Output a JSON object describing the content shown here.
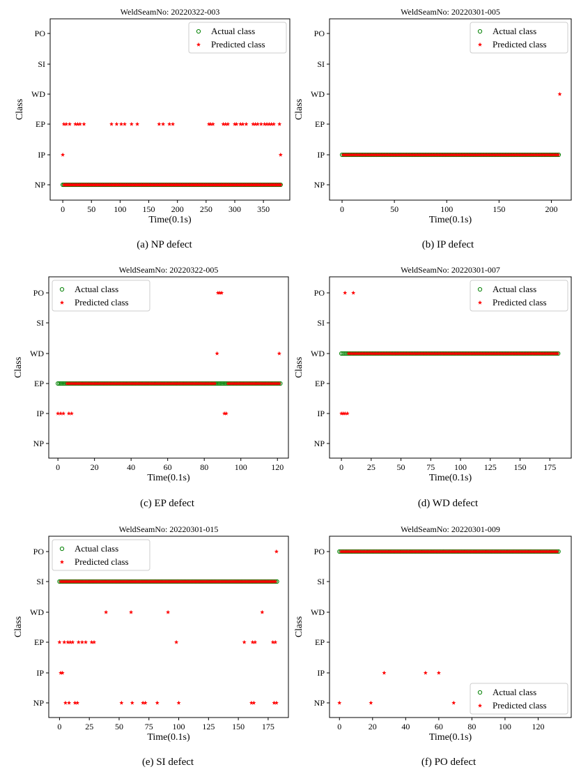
{
  "chart_data": [
    {
      "type": "scatter",
      "title": "WeldSeamNo: 20220322-003",
      "caption": "(a)  NP defect",
      "xlabel": "Time(0.1s)",
      "ylabel": "Class",
      "categories": [
        "NP",
        "IP",
        "EP",
        "WD",
        "SI",
        "PO"
      ],
      "xlim": [
        -22,
        396
      ],
      "xticks": [
        0,
        50,
        100,
        150,
        200,
        250,
        300,
        350
      ],
      "legend": "top-right",
      "legend_labels": [
        "Actual class",
        "Predicted class"
      ],
      "series": [
        {
          "name": "Actual class",
          "marker": "circle",
          "color": "#008000",
          "segments": [
            {
              "x": [
                0,
                380
              ],
              "y": "NP",
              "step": 2
            }
          ]
        },
        {
          "name": "Predicted class",
          "marker": "star",
          "color": "#ff0000",
          "segments": [
            {
              "x": [
                2,
                380
              ],
              "y": "NP",
              "step": 2
            }
          ],
          "points": [
            {
              "x": 0,
              "y": "IP"
            },
            {
              "x": 380,
              "y": "IP"
            },
            {
              "x": 2,
              "y": "EP"
            },
            {
              "x": 6,
              "y": "EP"
            },
            {
              "x": 12,
              "y": "EP"
            },
            {
              "x": 22,
              "y": "EP"
            },
            {
              "x": 26,
              "y": "EP"
            },
            {
              "x": 30,
              "y": "EP"
            },
            {
              "x": 37,
              "y": "EP"
            },
            {
              "x": 85,
              "y": "EP"
            },
            {
              "x": 94,
              "y": "EP"
            },
            {
              "x": 102,
              "y": "EP"
            },
            {
              "x": 108,
              "y": "EP"
            },
            {
              "x": 120,
              "y": "EP"
            },
            {
              "x": 130,
              "y": "EP"
            },
            {
              "x": 168,
              "y": "EP"
            },
            {
              "x": 175,
              "y": "EP"
            },
            {
              "x": 186,
              "y": "EP"
            },
            {
              "x": 192,
              "y": "EP"
            },
            {
              "x": 255,
              "y": "EP"
            },
            {
              "x": 258,
              "y": "EP"
            },
            {
              "x": 262,
              "y": "EP"
            },
            {
              "x": 280,
              "y": "EP"
            },
            {
              "x": 284,
              "y": "EP"
            },
            {
              "x": 288,
              "y": "EP"
            },
            {
              "x": 300,
              "y": "EP"
            },
            {
              "x": 303,
              "y": "EP"
            },
            {
              "x": 310,
              "y": "EP"
            },
            {
              "x": 314,
              "y": "EP"
            },
            {
              "x": 320,
              "y": "EP"
            },
            {
              "x": 332,
              "y": "EP"
            },
            {
              "x": 336,
              "y": "EP"
            },
            {
              "x": 340,
              "y": "EP"
            },
            {
              "x": 346,
              "y": "EP"
            },
            {
              "x": 352,
              "y": "EP"
            },
            {
              "x": 356,
              "y": "EP"
            },
            {
              "x": 360,
              "y": "EP"
            },
            {
              "x": 364,
              "y": "EP"
            },
            {
              "x": 368,
              "y": "EP"
            },
            {
              "x": 378,
              "y": "EP"
            }
          ]
        }
      ]
    },
    {
      "type": "scatter",
      "title": "WeldSeamNo: 20220301-005",
      "caption": "(b) IP defect",
      "xlabel": "Time(0.1s)",
      "ylabel": "Class",
      "categories": [
        "NP",
        "IP",
        "EP",
        "WD",
        "SI",
        "PO"
      ],
      "xlim": [
        -12,
        219
      ],
      "xticks": [
        0,
        50,
        100,
        150,
        200
      ],
      "legend": "top-right",
      "legend_labels": [
        "Actual class",
        "Predicted class"
      ],
      "series": [
        {
          "name": "Actual class",
          "marker": "circle",
          "color": "#008000",
          "segments": [
            {
              "x": [
                0,
                208
              ],
              "y": "IP",
              "step": 1.5
            }
          ]
        },
        {
          "name": "Predicted class",
          "marker": "star",
          "color": "#ff0000",
          "segments": [
            {
              "x": [
                1,
                207
              ],
              "y": "IP",
              "step": 1.5
            }
          ],
          "points": [
            {
              "x": 208,
              "y": "WD"
            }
          ]
        }
      ]
    },
    {
      "type": "scatter",
      "title": "WeldSeamNo: 20220322-005",
      "caption": "(c) EP defect",
      "xlabel": "Time(0.1s)",
      "ylabel": "Class",
      "categories": [
        "NP",
        "IP",
        "EP",
        "WD",
        "SI",
        "PO"
      ],
      "xlim": [
        -5,
        126
      ],
      "xticks": [
        0,
        20,
        40,
        60,
        80,
        100,
        120
      ],
      "legend": "top-left",
      "legend_labels": [
        "Actual class",
        "Predicted class"
      ],
      "series": [
        {
          "name": "Actual class",
          "marker": "circle",
          "color": "#008000",
          "segments": [
            {
              "x": [
                0,
                122
              ],
              "y": "EP",
              "step": 0.8
            }
          ]
        },
        {
          "name": "Predicted class",
          "marker": "star",
          "color": "#ff0000",
          "segments": [
            {
              "x": [
                5,
                86
              ],
              "y": "EP",
              "step": 0.8
            },
            {
              "x": [
                93,
                121
              ],
              "y": "EP",
              "step": 0.8
            }
          ],
          "points": [
            {
              "x": 0,
              "y": "IP"
            },
            {
              "x": 1.5,
              "y": "IP"
            },
            {
              "x": 3,
              "y": "IP"
            },
            {
              "x": 6,
              "y": "IP"
            },
            {
              "x": 7.5,
              "y": "IP"
            },
            {
              "x": 91,
              "y": "IP"
            },
            {
              "x": 92,
              "y": "IP"
            },
            {
              "x": 87,
              "y": "WD"
            },
            {
              "x": 121,
              "y": "WD"
            },
            {
              "x": 87.5,
              "y": "PO"
            },
            {
              "x": 88.5,
              "y": "PO"
            },
            {
              "x": 89.5,
              "y": "PO"
            }
          ]
        }
      ]
    },
    {
      "type": "scatter",
      "title": "WeldSeamNo: 20220301-007",
      "caption": "(d) WD defect",
      "xlabel": "Time(0.1s)",
      "ylabel": "Class",
      "categories": [
        "NP",
        "IP",
        "EP",
        "WD",
        "SI",
        "PO"
      ],
      "xlim": [
        -10,
        193
      ],
      "xticks": [
        0,
        25,
        50,
        75,
        100,
        125,
        150,
        175
      ],
      "legend": "top-right",
      "legend_labels": [
        "Actual class",
        "Predicted class"
      ],
      "series": [
        {
          "name": "Actual class",
          "marker": "circle",
          "color": "#008000",
          "segments": [
            {
              "x": [
                0,
                183
              ],
              "y": "WD",
              "step": 1.3
            }
          ]
        },
        {
          "name": "Predicted class",
          "marker": "star",
          "color": "#ff0000",
          "segments": [
            {
              "x": [
                6,
                182
              ],
              "y": "WD",
              "step": 1.3
            }
          ],
          "points": [
            {
              "x": 0,
              "y": "IP"
            },
            {
              "x": 1.5,
              "y": "IP"
            },
            {
              "x": 3,
              "y": "IP"
            },
            {
              "x": 5,
              "y": "IP"
            },
            {
              "x": 3,
              "y": "PO"
            },
            {
              "x": 10,
              "y": "PO"
            }
          ]
        }
      ]
    },
    {
      "type": "scatter",
      "title": "WeldSeamNo: 20220301-015",
      "caption": "(e) SI defect",
      "xlabel": "Time(0.1s)",
      "ylabel": "Class",
      "categories": [
        "NP",
        "IP",
        "EP",
        "WD",
        "SI",
        "PO"
      ],
      "xlim": [
        -9,
        192
      ],
      "xticks": [
        0,
        25,
        50,
        75,
        100,
        125,
        150,
        175
      ],
      "legend": "top-left",
      "legend_labels": [
        "Actual class",
        "Predicted class"
      ],
      "series": [
        {
          "name": "Actual class",
          "marker": "circle",
          "color": "#008000",
          "segments": [
            {
              "x": [
                0,
                183
              ],
              "y": "SI",
              "step": 1.2
            }
          ]
        },
        {
          "name": "Predicted class",
          "marker": "star",
          "color": "#ff0000",
          "segments": [
            {
              "x": [
                1,
                182
              ],
              "y": "SI",
              "step": 1.2
            }
          ],
          "points": [
            {
              "x": 182,
              "y": "PO"
            },
            {
              "x": 39,
              "y": "WD"
            },
            {
              "x": 60,
              "y": "WD"
            },
            {
              "x": 91,
              "y": "WD"
            },
            {
              "x": 170,
              "y": "WD"
            },
            {
              "x": 0,
              "y": "EP"
            },
            {
              "x": 4,
              "y": "EP"
            },
            {
              "x": 7,
              "y": "EP"
            },
            {
              "x": 9,
              "y": "EP"
            },
            {
              "x": 11,
              "y": "EP"
            },
            {
              "x": 16,
              "y": "EP"
            },
            {
              "x": 19,
              "y": "EP"
            },
            {
              "x": 22,
              "y": "EP"
            },
            {
              "x": 27,
              "y": "EP"
            },
            {
              "x": 29,
              "y": "EP"
            },
            {
              "x": 98,
              "y": "EP"
            },
            {
              "x": 155,
              "y": "EP"
            },
            {
              "x": 162,
              "y": "EP"
            },
            {
              "x": 164,
              "y": "EP"
            },
            {
              "x": 179,
              "y": "EP"
            },
            {
              "x": 181,
              "y": "EP"
            },
            {
              "x": 1,
              "y": "IP"
            },
            {
              "x": 2.5,
              "y": "IP"
            },
            {
              "x": 5,
              "y": "NP"
            },
            {
              "x": 8,
              "y": "NP"
            },
            {
              "x": 13,
              "y": "NP"
            },
            {
              "x": 15,
              "y": "NP"
            },
            {
              "x": 52,
              "y": "NP"
            },
            {
              "x": 61,
              "y": "NP"
            },
            {
              "x": 70,
              "y": "NP"
            },
            {
              "x": 72,
              "y": "NP"
            },
            {
              "x": 82,
              "y": "NP"
            },
            {
              "x": 100,
              "y": "NP"
            },
            {
              "x": 161,
              "y": "NP"
            },
            {
              "x": 163,
              "y": "NP"
            },
            {
              "x": 180,
              "y": "NP"
            },
            {
              "x": 182,
              "y": "NP"
            }
          ]
        }
      ]
    },
    {
      "type": "scatter",
      "title": "WeldSeamNo: 20220301-009",
      "caption": "(f) PO defect",
      "xlabel": "Time(0.1s)",
      "ylabel": "Class",
      "categories": [
        "NP",
        "IP",
        "EP",
        "WD",
        "SI",
        "PO"
      ],
      "xlim": [
        -6,
        140
      ],
      "xticks": [
        0,
        20,
        40,
        60,
        80,
        100,
        120
      ],
      "legend": "bottom-right",
      "legend_labels": [
        "Actual class",
        "Predicted class"
      ],
      "series": [
        {
          "name": "Actual class",
          "marker": "circle",
          "color": "#008000",
          "segments": [
            {
              "x": [
                0,
                133
              ],
              "y": "PO",
              "step": 0.9
            }
          ]
        },
        {
          "name": "Predicted class",
          "marker": "star",
          "color": "#ff0000",
          "segments": [
            {
              "x": [
                1,
                132
              ],
              "y": "PO",
              "step": 0.9
            }
          ],
          "points": [
            {
              "x": 27,
              "y": "IP"
            },
            {
              "x": 52,
              "y": "IP"
            },
            {
              "x": 60,
              "y": "IP"
            },
            {
              "x": 0,
              "y": "NP"
            },
            {
              "x": 19,
              "y": "NP"
            },
            {
              "x": 69,
              "y": "NP"
            }
          ]
        }
      ]
    }
  ]
}
